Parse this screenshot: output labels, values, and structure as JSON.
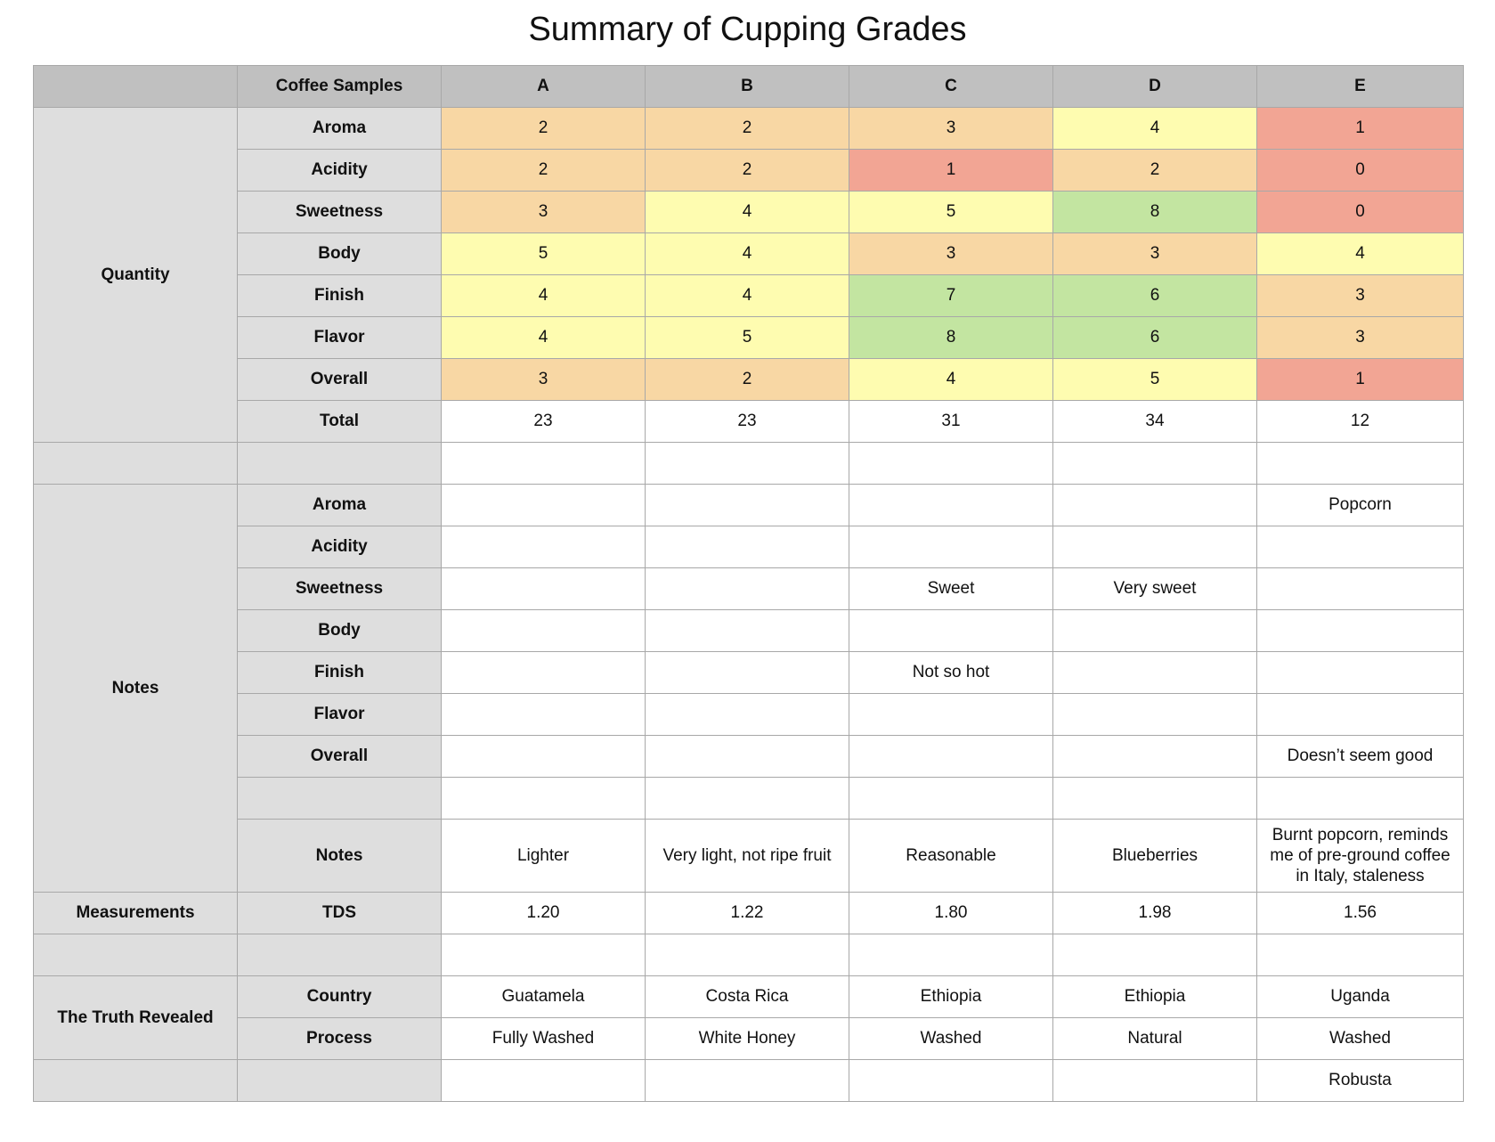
{
  "title": "Summary of Cupping Grades",
  "header": {
    "group": "",
    "label": "Coffee Samples",
    "samples": [
      "A",
      "B",
      "C",
      "D",
      "E"
    ]
  },
  "groups": {
    "quantity": "Quantity",
    "notes": "Notes",
    "measurements": "Measurements",
    "truth": "The Truth Revealed"
  },
  "colors": {
    "red": "#f2a594",
    "orange": "#f8d7a4",
    "yellow": "#fefcb0",
    "green": "#c3e5a1"
  },
  "quantity": [
    {
      "label": "Aroma",
      "values": [
        "2",
        "2",
        "3",
        "4",
        "1"
      ],
      "colors": [
        "orange",
        "orange",
        "orange",
        "yellow",
        "red"
      ]
    },
    {
      "label": "Acidity",
      "values": [
        "2",
        "2",
        "1",
        "2",
        "0"
      ],
      "colors": [
        "orange",
        "orange",
        "red",
        "orange",
        "red"
      ]
    },
    {
      "label": "Sweetness",
      "values": [
        "3",
        "4",
        "5",
        "8",
        "0"
      ],
      "colors": [
        "orange",
        "yellow",
        "yellow",
        "green",
        "red"
      ]
    },
    {
      "label": "Body",
      "values": [
        "5",
        "4",
        "3",
        "3",
        "4"
      ],
      "colors": [
        "yellow",
        "yellow",
        "orange",
        "orange",
        "yellow"
      ]
    },
    {
      "label": "Finish",
      "values": [
        "4",
        "4",
        "7",
        "6",
        "3"
      ],
      "colors": [
        "yellow",
        "yellow",
        "green",
        "green",
        "orange"
      ]
    },
    {
      "label": "Flavor",
      "values": [
        "4",
        "5",
        "8",
        "6",
        "3"
      ],
      "colors": [
        "yellow",
        "yellow",
        "green",
        "green",
        "orange"
      ]
    },
    {
      "label": "Overall",
      "values": [
        "3",
        "2",
        "4",
        "5",
        "1"
      ],
      "colors": [
        "orange",
        "orange",
        "yellow",
        "yellow",
        "red"
      ]
    },
    {
      "label": "Total",
      "values": [
        "23",
        "23",
        "31",
        "34",
        "12"
      ],
      "colors": [
        "",
        "",
        "",
        "",
        ""
      ]
    }
  ],
  "notes": [
    {
      "label": "Aroma",
      "values": [
        "",
        "",
        "",
        "",
        "Popcorn"
      ]
    },
    {
      "label": "Acidity",
      "values": [
        "",
        "",
        "",
        "",
        ""
      ]
    },
    {
      "label": "Sweetness",
      "values": [
        "",
        "",
        "Sweet",
        "Very sweet",
        ""
      ]
    },
    {
      "label": "Body",
      "values": [
        "",
        "",
        "",
        "",
        ""
      ]
    },
    {
      "label": "Finish",
      "values": [
        "",
        "",
        "Not so hot",
        "",
        ""
      ]
    },
    {
      "label": "Flavor",
      "values": [
        "",
        "",
        "",
        "",
        ""
      ]
    },
    {
      "label": "Overall",
      "values": [
        "",
        "",
        "",
        "",
        "Doesn’t seem good"
      ]
    },
    {
      "label": "",
      "values": [
        "",
        "",
        "",
        "",
        ""
      ]
    },
    {
      "label": "Notes",
      "values": [
        "Lighter",
        "Very light, not ripe fruit",
        "Reasonable",
        "Blueberries",
        "Burnt popcorn, reminds me of pre-ground coffee in Italy, staleness"
      ]
    }
  ],
  "measurements": {
    "label": "TDS",
    "values": [
      "1.20",
      "1.22",
      "1.80",
      "1.98",
      "1.56"
    ]
  },
  "truth": [
    {
      "label": "Country",
      "values": [
        "Guatamela",
        "Costa Rica",
        "Ethiopia",
        "Ethiopia",
        "Uganda"
      ]
    },
    {
      "label": "Process",
      "values": [
        "Fully Washed",
        "White Honey",
        "Washed",
        "Natural",
        "Washed"
      ]
    },
    {
      "label": "",
      "values": [
        "",
        "",
        "",
        "",
        "Robusta"
      ],
      "group_label": ""
    }
  ]
}
